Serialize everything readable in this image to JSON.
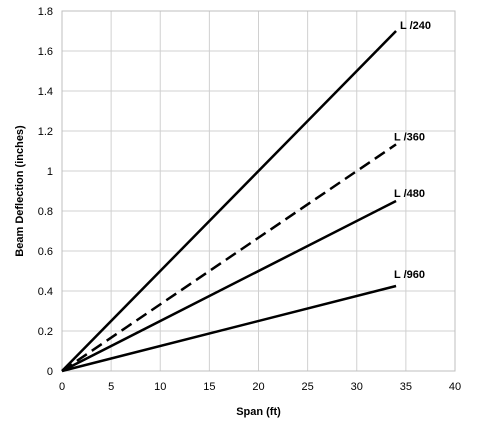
{
  "chart_data": {
    "type": "line",
    "title": "",
    "xlabel": "Span (ft)",
    "ylabel": "Beam Deflection (inches)",
    "xlim": [
      0,
      40
    ],
    "ylim": [
      0,
      1.8
    ],
    "x_ticks": [
      0,
      5,
      10,
      15,
      20,
      25,
      30,
      35,
      40
    ],
    "y_ticks": [
      0,
      0.2,
      0.4,
      0.6,
      0.8,
      1,
      1.2,
      1.4,
      1.6,
      1.8
    ],
    "x_tick_labels": [
      "0",
      "5",
      "10",
      "15",
      "20",
      "25",
      "30",
      "35",
      "40"
    ],
    "y_tick_labels": [
      "0",
      "0.2",
      "0.4",
      "0.6",
      "0.8",
      "1",
      "1.2",
      "1.4",
      "1.6",
      "1.8"
    ],
    "grid": true,
    "legend": "none (series labeled at line ends)",
    "series": [
      {
        "name": "L /240",
        "style": "solid",
        "color": "#000000",
        "x": [
          0,
          34
        ],
        "y": [
          0,
          1.7
        ]
      },
      {
        "name": "L /360",
        "style": "dashed",
        "color": "#000000",
        "x": [
          0,
          34
        ],
        "y": [
          0,
          1.133
        ]
      },
      {
        "name": "L /480",
        "style": "solid",
        "color": "#000000",
        "x": [
          0,
          34
        ],
        "y": [
          0,
          0.85
        ]
      },
      {
        "name": "L /960",
        "style": "solid",
        "color": "#000000",
        "x": [
          0,
          34
        ],
        "y": [
          0,
          0.425
        ]
      }
    ]
  }
}
